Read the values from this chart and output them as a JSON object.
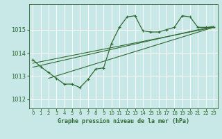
{
  "background_color": "#c8e8e8",
  "plot_bg_color": "#c8e8e8",
  "grid_color": "#ffffff",
  "line_color": "#2d6a2d",
  "title": "Graphe pression niveau de la mer (hPa)",
  "xlim": [
    -0.5,
    23.5
  ],
  "ylim": [
    1011.6,
    1016.1
  ],
  "yticks": [
    1012,
    1013,
    1014,
    1015
  ],
  "xticks": [
    0,
    1,
    2,
    3,
    4,
    5,
    6,
    7,
    8,
    9,
    10,
    11,
    12,
    13,
    14,
    15,
    16,
    17,
    18,
    19,
    20,
    21,
    22,
    23
  ],
  "main_x": [
    0,
    1,
    2,
    3,
    4,
    5,
    6,
    7,
    8,
    9,
    10,
    11,
    12,
    13,
    14,
    15,
    16,
    17,
    18,
    19,
    20,
    21,
    22,
    23
  ],
  "main_y": [
    1013.7,
    1013.4,
    1013.15,
    1012.9,
    1012.65,
    1012.65,
    1012.5,
    1012.85,
    1013.3,
    1013.35,
    1014.4,
    1015.1,
    1015.55,
    1015.6,
    1014.95,
    1014.9,
    1014.9,
    1015.0,
    1015.1,
    1015.6,
    1015.55,
    1015.1,
    1015.1,
    1015.1
  ],
  "trend1_x": [
    0,
    23
  ],
  "trend1_y": [
    1013.55,
    1015.1
  ],
  "trend2_x": [
    0,
    23
  ],
  "trend2_y": [
    1013.38,
    1015.15
  ],
  "trend3_x": [
    2,
    23
  ],
  "trend3_y": [
    1012.9,
    1015.1
  ]
}
